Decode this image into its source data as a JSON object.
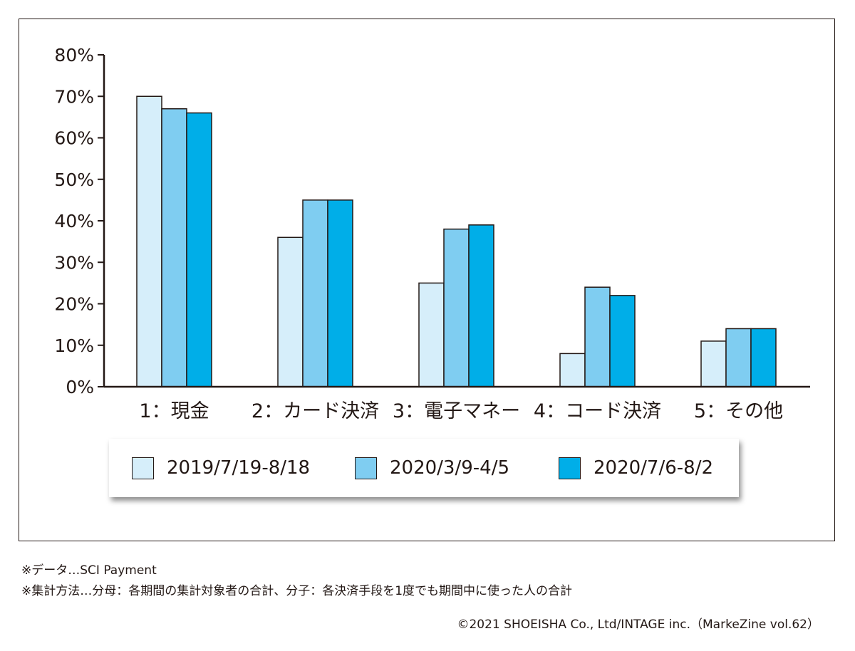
{
  "chart_data": {
    "type": "bar",
    "title": "",
    "xlabel": "",
    "ylabel": "",
    "ylim": [
      0,
      80
    ],
    "yticks": [
      0,
      10,
      20,
      30,
      40,
      50,
      60,
      70,
      80
    ],
    "ytick_labels": [
      "0%",
      "10%",
      "20%",
      "30%",
      "40%",
      "50%",
      "60%",
      "70%",
      "80%"
    ],
    "categories": [
      "1：現金",
      "2：カード決済",
      "3：電子マネー",
      "4：コード決済",
      "5：その他"
    ],
    "series": [
      {
        "name": "2019/7/19-8/18",
        "color": "#d6eefa",
        "values": [
          70,
          36,
          25,
          8,
          11
        ]
      },
      {
        "name": "2020/3/9-4/5",
        "color": "#7fcdf1",
        "values": [
          67,
          45,
          38,
          24,
          14
        ]
      },
      {
        "name": "2020/7/6-8/2",
        "color": "#00aee8",
        "values": [
          66,
          45,
          39,
          22,
          14
        ]
      }
    ],
    "legend_position": "bottom",
    "grid": false
  },
  "notes": {
    "data_source": "※データ…SCI Payment",
    "method": "※集計方法…分母：各期間の集計対象者の合計、分子：各決済手段を1度でも期間中に使った人の合計"
  },
  "credit": "©2021 SHOEISHA Co., Ltd/INTAGE inc.（MarkeZine vol.62）"
}
